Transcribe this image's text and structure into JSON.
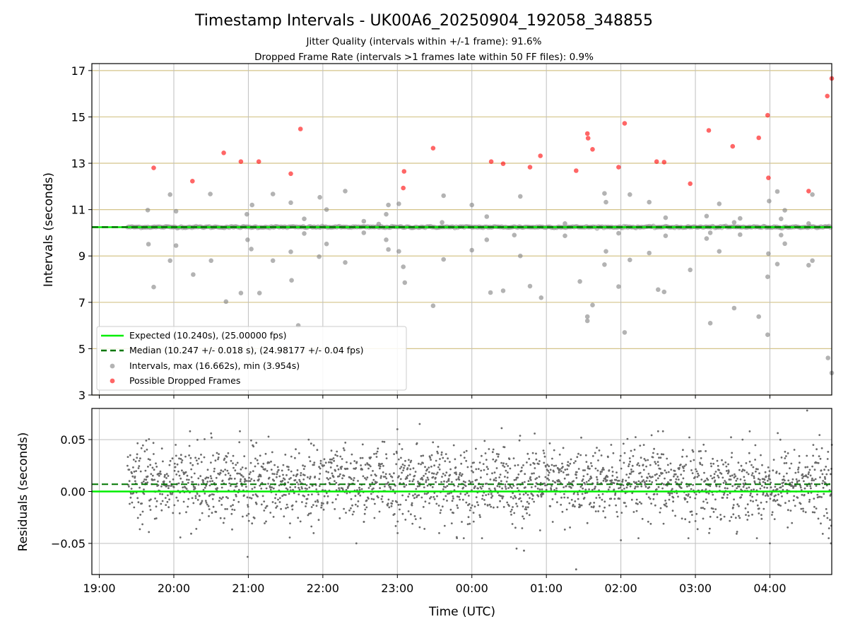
{
  "chart_data": [
    {
      "type": "scatter",
      "title": "Timestamp Intervals - UK00A6_20250904_192058_348855",
      "subtitle_1": "Jitter Quality (intervals within +/-1 frame): 91.6%",
      "subtitle_2": "Dropped Frame Rate (intervals >1 frames late within 50 FF files): 0.9%",
      "ylabel": "Intervals (seconds)",
      "xlabel": "",
      "ylim": [
        3,
        17.3
      ],
      "yticks": [
        "3",
        "5",
        "7",
        "9",
        "11",
        "13",
        "15",
        "17"
      ],
      "xlim_hours": [
        18.9,
        28.83
      ],
      "grid": true,
      "legend_position": "lower-left",
      "expected_value": 10.24,
      "median_value": 10.247,
      "legend": [
        "Expected (10.240s), (25.00000 fps)",
        "Median (10.247 +/- 0.018 s), (24.98177 +/- 0.04 fps)",
        "Intervals, max (16.662s), min (3.954s)",
        "Possible Dropped Frames"
      ],
      "series": [
        {
          "name": "Intervals, max (16.662s), min (3.954s)",
          "color": "#808080",
          "points": [
            [
              19.65,
              10.98
            ],
            [
              19.66,
              9.51
            ],
            [
              19.73,
              7.66
            ],
            [
              19.95,
              8.8
            ],
            [
              19.95,
              11.65
            ],
            [
              20.03,
              10.93
            ],
            [
              20.03,
              9.45
            ],
            [
              20.26,
              8.2
            ],
            [
              20.5,
              8.8
            ],
            [
              20.49,
              11.67
            ],
            [
              20.7,
              7.03
            ],
            [
              20.9,
              7.4
            ],
            [
              20.98,
              10.8
            ],
            [
              20.99,
              9.7
            ],
            [
              21.04,
              9.3
            ],
            [
              21.05,
              11.2
            ],
            [
              21.15,
              7.4
            ],
            [
              21.33,
              8.8
            ],
            [
              21.33,
              11.67
            ],
            [
              21.57,
              9.18
            ],
            [
              21.58,
              7.95
            ],
            [
              21.57,
              11.3
            ],
            [
              21.67,
              6.0
            ],
            [
              21.75,
              10.6
            ],
            [
              21.75,
              9.97
            ],
            [
              21.95,
              8.97
            ],
            [
              21.96,
              11.53
            ],
            [
              22.05,
              9.52
            ],
            [
              22.05,
              11.0
            ],
            [
              22.3,
              8.72
            ],
            [
              22.3,
              11.8
            ],
            [
              22.55,
              10.0
            ],
            [
              22.55,
              10.5
            ],
            [
              22.75,
              10.38
            ],
            [
              22.85,
              10.8
            ],
            [
              22.85,
              9.7
            ],
            [
              22.88,
              9.28
            ],
            [
              22.88,
              11.2
            ],
            [
              23.02,
              11.25
            ],
            [
              23.02,
              9.2
            ],
            [
              23.08,
              8.53
            ],
            [
              23.1,
              7.85
            ],
            [
              23.48,
              6.85
            ],
            [
              23.62,
              11.6
            ],
            [
              23.62,
              8.85
            ],
            [
              23.6,
              10.45
            ],
            [
              24.0,
              11.2
            ],
            [
              24.0,
              9.25
            ],
            [
              24.2,
              10.7
            ],
            [
              24.2,
              9.7
            ],
            [
              24.25,
              7.42
            ],
            [
              24.42,
              7.5
            ],
            [
              24.57,
              9.9
            ],
            [
              24.65,
              11.57
            ],
            [
              24.65,
              9.0
            ],
            [
              24.78,
              7.7
            ],
            [
              24.93,
              7.2
            ],
            [
              25.25,
              10.4
            ],
            [
              25.25,
              9.87
            ],
            [
              25.45,
              7.9
            ],
            [
              25.55,
              6.38
            ],
            [
              25.55,
              6.2
            ],
            [
              25.62,
              6.88
            ],
            [
              25.78,
              11.7
            ],
            [
              25.78,
              8.63
            ],
            [
              25.8,
              11.32
            ],
            [
              25.8,
              9.2
            ],
            [
              25.97,
              7.68
            ],
            [
              25.97,
              9.98
            ],
            [
              26.05,
              5.7
            ],
            [
              26.12,
              11.65
            ],
            [
              26.12,
              8.83
            ],
            [
              26.38,
              11.32
            ],
            [
              26.38,
              9.13
            ],
            [
              26.5,
              7.55
            ],
            [
              26.58,
              7.45
            ],
            [
              26.6,
              10.65
            ],
            [
              26.6,
              9.87
            ],
            [
              26.93,
              8.4
            ],
            [
              27.15,
              10.72
            ],
            [
              27.15,
              9.75
            ],
            [
              27.2,
              6.1
            ],
            [
              27.2,
              10.0
            ],
            [
              27.32,
              11.25
            ],
            [
              27.32,
              9.2
            ],
            [
              27.52,
              6.75
            ],
            [
              27.52,
              10.45
            ],
            [
              27.6,
              10.62
            ],
            [
              27.6,
              9.92
            ],
            [
              27.85,
              6.38
            ],
            [
              27.97,
              5.6
            ],
            [
              27.97,
              8.1
            ],
            [
              27.98,
              9.1
            ],
            [
              27.99,
              11.37
            ],
            [
              28.1,
              11.78
            ],
            [
              28.1,
              8.65
            ],
            [
              28.15,
              10.6
            ],
            [
              28.15,
              9.9
            ],
            [
              28.2,
              10.97
            ],
            [
              28.2,
              9.53
            ],
            [
              28.52,
              8.6
            ],
            [
              28.52,
              10.4
            ],
            [
              28.57,
              8.8
            ],
            [
              28.57,
              11.65
            ],
            [
              28.78,
              4.6
            ],
            [
              28.83,
              3.95
            ]
          ]
        },
        {
          "name": "Possible Dropped Frames",
          "color": "#ff0000",
          "points": [
            [
              19.73,
              12.8
            ],
            [
              20.25,
              12.23
            ],
            [
              20.67,
              13.45
            ],
            [
              20.9,
              13.07
            ],
            [
              21.14,
              13.07
            ],
            [
              21.57,
              12.55
            ],
            [
              21.7,
              14.48
            ],
            [
              23.08,
              11.93
            ],
            [
              23.09,
              12.65
            ],
            [
              23.48,
              13.65
            ],
            [
              24.26,
              13.07
            ],
            [
              24.42,
              12.98
            ],
            [
              24.78,
              12.83
            ],
            [
              24.92,
              13.32
            ],
            [
              25.4,
              12.68
            ],
            [
              25.55,
              14.28
            ],
            [
              25.56,
              14.08
            ],
            [
              25.62,
              13.6
            ],
            [
              25.97,
              12.83
            ],
            [
              26.05,
              14.72
            ],
            [
              26.48,
              13.07
            ],
            [
              26.58,
              13.05
            ],
            [
              26.93,
              12.12
            ],
            [
              27.18,
              14.42
            ],
            [
              27.5,
              13.73
            ],
            [
              27.85,
              14.1
            ],
            [
              27.97,
              15.07
            ],
            [
              27.98,
              12.37
            ],
            [
              28.52,
              11.8
            ],
            [
              28.77,
              15.9
            ],
            [
              28.83,
              16.66
            ]
          ]
        }
      ]
    },
    {
      "type": "scatter",
      "xlabel": "Time (UTC)",
      "ylabel": "Residuals (seconds)",
      "ylim": [
        -0.08,
        0.08
      ],
      "yticks": [
        "−0.05",
        "0.00",
        "0.05"
      ],
      "xticks": [
        "19:00",
        "20:00",
        "21:00",
        "22:00",
        "23:00",
        "00:00",
        "01:00",
        "02:00",
        "03:00",
        "04:00"
      ],
      "xlim_hours": [
        18.9,
        28.83
      ],
      "grid": true,
      "expected_residual": 0.0,
      "median_residual": 0.007,
      "spread_sd": 0.018,
      "sample_count": 2300,
      "outliers": [
        [
          28.5,
          0.078
        ],
        [
          25.4,
          -0.075
        ],
        [
          20.99,
          -0.063
        ],
        [
          23.3,
          0.065
        ],
        [
          24.6,
          -0.055
        ],
        [
          24.7,
          -0.057
        ],
        [
          22.45,
          -0.05
        ],
        [
          23.8,
          -0.045
        ],
        [
          26.0,
          -0.047
        ],
        [
          28.0,
          -0.05
        ],
        [
          28.82,
          -0.05
        ],
        [
          20.5,
          0.056
        ],
        [
          23.0,
          0.06
        ],
        [
          24.4,
          0.061
        ],
        [
          26.5,
          0.058
        ]
      ],
      "series": [
        {
          "name": "",
          "color": "#696969"
        }
      ]
    }
  ],
  "colors": {
    "expected_line": "#00ee00",
    "median_line": "#007700",
    "interval_points": "#808080",
    "dropped_points": "#ff3333",
    "residual_points": "#696969",
    "grid_x": "#bfbfbf",
    "grid_y_top": "#d4c48a"
  }
}
